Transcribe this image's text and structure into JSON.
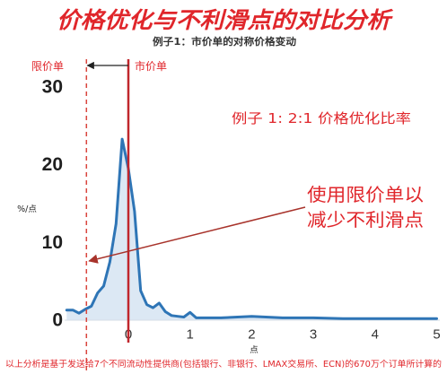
{
  "chart_data": {
    "type": "area",
    "title": "价格优化与不利滑点的对比分析",
    "subtitle": "例子1：市价单的对称价格变动",
    "xlabel": "点",
    "ylabel": "%/点",
    "xlim": [
      -1,
      5
    ],
    "ylim": [
      0,
      30
    ],
    "xticks": [
      0,
      1,
      2,
      3,
      4,
      5
    ],
    "yticks": [
      0,
      10,
      20,
      30
    ],
    "grid": false,
    "text_color": "#e0262b",
    "series": [
      {
        "x": [
          -1.0,
          -0.9,
          -0.8,
          -0.7,
          -0.6,
          -0.5,
          -0.4,
          -0.3,
          -0.2,
          -0.1,
          0.0,
          0.1,
          0.2,
          0.3,
          0.4,
          0.5,
          0.6,
          0.7,
          0.8,
          0.9,
          1.0,
          1.1,
          1.2,
          1.5,
          2.0,
          2.5,
          3.0,
          3.5,
          4.0,
          4.5,
          5.0
        ],
        "y": [
          1.3,
          1.3,
          0.9,
          1.4,
          1.8,
          3.5,
          4.4,
          7.5,
          12.4,
          23.3,
          19.5,
          14.0,
          3.8,
          2.0,
          1.6,
          2.2,
          1.1,
          0.6,
          0.5,
          0.4,
          1.0,
          0.3,
          0.3,
          0.3,
          0.5,
          0.3,
          0.3,
          0.2,
          0.2,
          0.2,
          0.2
        ],
        "line_color": "#2e75b6",
        "fill_color": "#dce8f4"
      }
    ],
    "reference_lines": [
      {
        "label": "限价单",
        "x": -0.68,
        "dashed": true,
        "color": "#d9453d"
      },
      {
        "label": "市价单",
        "x": 0,
        "dashed": false,
        "color": "#c0272d"
      }
    ],
    "annotations": {
      "ratio": "例子 1: 2:1 价格优化比率",
      "callout_line1": "使用限价单以",
      "callout_line2": "减少不利滑点",
      "arrow_color": "#a8332b"
    },
    "footnote": "以上分析是基于发送给7个不同流动性提供商(包括银行、非银行、LMAX交易所、ECN)的670万个订单所计算的"
  }
}
